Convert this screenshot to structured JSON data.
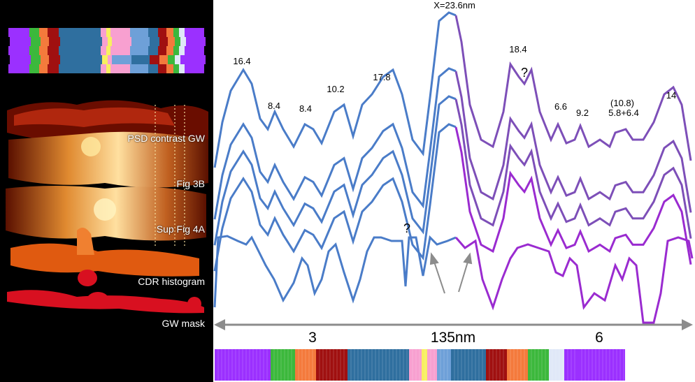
{
  "title_label": "X=23.6nm",
  "peak_labels": [
    {
      "text": "16.4"
    },
    {
      "text": "8.4"
    },
    {
      "text": "8.4"
    },
    {
      "text": "10.2"
    },
    {
      "text": "17.8"
    },
    {
      "text": "18.4"
    },
    {
      "text": "6.6"
    },
    {
      "text": "9.2"
    },
    {
      "text": "(10.8)"
    },
    {
      "text": "5.8+6.4"
    },
    {
      "text": "14"
    }
  ],
  "question_marks": [
    "?",
    "?"
  ],
  "scale_bar": {
    "left": "3",
    "center": "135nm",
    "right": "6"
  },
  "panel_labels": [
    "PSD contrast GW",
    "Fig 3B",
    "Sup Fig 4A",
    "CDR histogram",
    "GW mask"
  ],
  "colors": {
    "blue_trace": "#4a7cc8",
    "purple_trace": "#7d4fb8",
    "magenta_trace": "#9a2bd0",
    "arrow_gray": "#8c8c8c",
    "strip": [
      "#9b30ff",
      "#3cb83c",
      "#f47a3c",
      "#a01010",
      "#2f6f9f",
      "#f8a0d0",
      "#f8f060",
      "#f8a0d0",
      "#6ea0d8",
      "#2f6f9f",
      "#a01010",
      "#f47a3c",
      "#3cb83c",
      "#e0e8f8",
      "#9b30ff"
    ]
  }
}
